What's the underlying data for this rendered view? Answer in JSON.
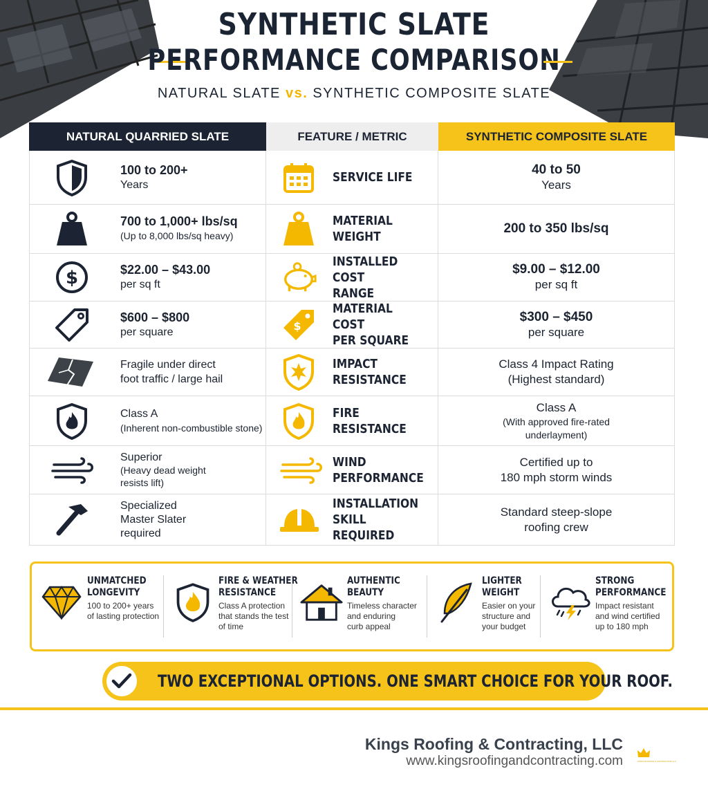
{
  "header": {
    "title_line1": "SYNTHETIC SLATE",
    "title_line2": "PERFORMANCE COMPARISON",
    "subtitle_left": "NATURAL SLATE",
    "subtitle_vs": "vs.",
    "subtitle_right": "SYNTHETIC COMPOSITE SLATE"
  },
  "table": {
    "headers": {
      "natural": "NATURAL QUARRIED SLATE",
      "feature": "FEATURE / METRIC",
      "synthetic": "SYNTHETIC COMPOSITE SLATE"
    },
    "rows": [
      {
        "feature_line1": "SERVICE LIFE",
        "feature_line2": "",
        "natural_line1": "100 to 200+",
        "natural_line2": "Years",
        "natural_line3": "",
        "synthetic_line1": "40 to 50",
        "synthetic_line2": "Years",
        "natural_icon": "shield-icon",
        "feature_icon": "calendar-icon"
      },
      {
        "feature_line1": "MATERIAL WEIGHT",
        "feature_line2": "",
        "natural_line1": "700 to 1,000+ lbs/sq",
        "natural_line2": "(Up to 8,000 lbs/sq heavy)",
        "natural_line3": "",
        "synthetic_line1": "200 to 350 lbs/sq",
        "synthetic_line2": "",
        "natural_icon": "weight-icon",
        "feature_icon": "weight-icon"
      },
      {
        "feature_line1": "INSTALLED COST",
        "feature_line2": "RANGE",
        "natural_line1": "$22.00 – $43.00",
        "natural_line2": "per sq ft",
        "natural_line3": "",
        "synthetic_line1": "$9.00 – $12.00",
        "synthetic_line2": "per sq ft",
        "natural_icon": "dollar-icon",
        "feature_icon": "piggy-bank-icon"
      },
      {
        "feature_line1": "MATERIAL COST",
        "feature_line2": "PER SQUARE",
        "natural_line1": "$600 – $800",
        "natural_line2": "per square",
        "natural_line3": "",
        "synthetic_line1": "$300 – $450",
        "synthetic_line2": "per square",
        "natural_icon": "price-tag-icon",
        "feature_icon": "price-tag-icon"
      },
      {
        "feature_line1": "IMPACT",
        "feature_line2": "RESISTANCE",
        "natural_line1": "Fragile under direct",
        "natural_line2": "foot traffic / large hail",
        "natural_line3": "",
        "synthetic_line1": "Class 4 Impact Rating",
        "synthetic_line2": "(Highest standard)",
        "natural_icon": "cracked-slate-icon",
        "feature_icon": "impact-shield-icon"
      },
      {
        "feature_line1": "FIRE",
        "feature_line2": "RESISTANCE",
        "natural_line1": "Class A",
        "natural_line2": "(Inherent non-combustible stone)",
        "natural_line3": "",
        "synthetic_line1": "Class A",
        "synthetic_line2": "(With approved fire-rated underlayment)",
        "natural_icon": "fire-shield-icon",
        "feature_icon": "fire-shield-icon"
      },
      {
        "feature_line1": "WIND",
        "feature_line2": "PERFORMANCE",
        "natural_line1": "Superior",
        "natural_line2": "(Heavy dead weight",
        "natural_line3": "resists lift)",
        "synthetic_line1": "Certified up to",
        "synthetic_line2": "180 mph storm winds",
        "natural_icon": "wind-icon",
        "feature_icon": "wind-icon"
      },
      {
        "feature_line1": "INSTALLATION",
        "feature_line2": "SKILL REQUIRED",
        "natural_line1": "Specialized",
        "natural_line2": "Master Slater",
        "natural_line3": "required",
        "synthetic_line1": "Standard steep-slope",
        "synthetic_line2": "roofing crew",
        "natural_icon": "hammer-icon",
        "feature_icon": "hard-hat-icon"
      }
    ]
  },
  "benefits": [
    {
      "title1": "UNMATCHED",
      "title2": "LONGEVITY",
      "desc1": "100 to 200+ years",
      "desc2": "of lasting protection",
      "desc3": "",
      "icon": "diamond-icon"
    },
    {
      "title1": "FIRE & WEATHER",
      "title2": "RESISTANCE",
      "desc1": "Class A protection",
      "desc2": "that stands the test",
      "desc3": "of time",
      "icon": "fire-shield-icon"
    },
    {
      "title1": "AUTHENTIC",
      "title2": "BEAUTY",
      "desc1": "Timeless character",
      "desc2": "and enduring",
      "desc3": "curb appeal",
      "icon": "house-icon"
    },
    {
      "title1": "LIGHTER",
      "title2": "WEIGHT",
      "desc1": "Easier on your",
      "desc2": "structure and",
      "desc3": "your budget",
      "icon": "feather-icon"
    },
    {
      "title1": "STRONG",
      "title2": "PERFORMANCE",
      "desc1": "Impact resistant",
      "desc2": "and wind certified",
      "desc3": "up to 180 mph",
      "icon": "storm-cloud-icon"
    }
  ],
  "tagline": "TWO EXCEPTIONAL OPTIONS. ONE SMART CHOICE FOR YOUR ROOF.",
  "footer": {
    "company": "Kings Roofing & Contracting, LLC",
    "url": "www.kingsroofingandcontracting.com",
    "logo_text": "KINGS ROOFING & CONTRACTING LLC"
  },
  "colors": {
    "navy": "#1c2433",
    "gold": "#f5c31a",
    "light_gray": "#eeeeee"
  }
}
